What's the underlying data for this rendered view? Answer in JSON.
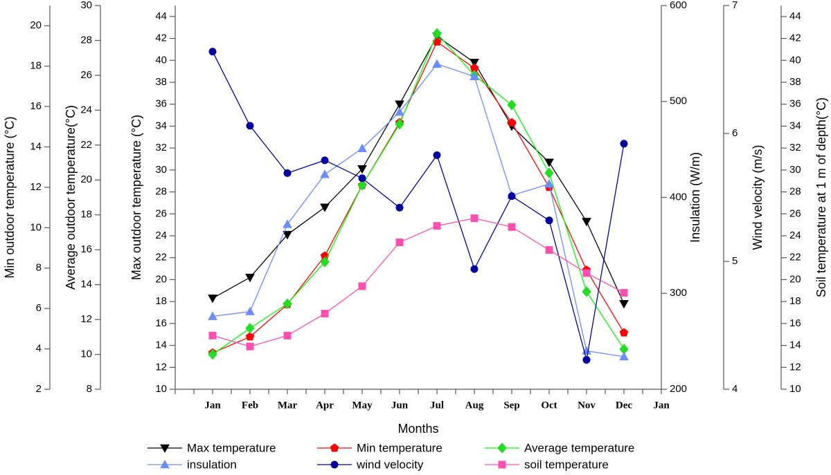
{
  "chart_data": {
    "type": "line",
    "xlabel": "Months",
    "categories": [
      "Jan",
      "Feb",
      "Mar",
      "Apr",
      "May",
      "Jun",
      "Jul",
      "Aug",
      "Sep",
      "Oct",
      "Nov",
      "Dec",
      "Jan"
    ],
    "ylabel": "Max outdoor temperature (°C)",
    "ylim": [
      10,
      45
    ],
    "yticks": [
      10,
      12,
      14,
      16,
      18,
      20,
      22,
      24,
      26,
      28,
      30,
      32,
      34,
      36,
      38,
      40,
      42,
      44
    ],
    "y2label": "Min outdoor temperature (°C)",
    "y2lim": [
      2,
      21
    ],
    "y2ticks": [
      2,
      4,
      6,
      8,
      10,
      12,
      14,
      16,
      18,
      20
    ],
    "y3label": "Average outdoor temperature(°C)",
    "y3lim": [
      8,
      30
    ],
    "y3ticks": [
      8,
      10,
      12,
      14,
      16,
      18,
      20,
      22,
      24,
      26,
      28,
      30
    ],
    "y4label": "Insulation (W/m)",
    "y4lim": [
      200,
      600
    ],
    "y4ticks": [
      200,
      300,
      400,
      500,
      600
    ],
    "y5label": "Wind velocity (m/s)",
    "y5lim": [
      4,
      7
    ],
    "y5ticks": [
      4,
      5,
      6,
      7
    ],
    "y6label": "Soil temperature at 1 m of depth(°C)",
    "y6lim": [
      10,
      45
    ],
    "y6ticks": [
      10,
      12,
      14,
      16,
      18,
      20,
      22,
      24,
      26,
      28,
      30,
      32,
      34,
      36,
      38,
      40,
      42,
      44
    ],
    "series": [
      {
        "name": "Max temperature",
        "color": "#000000",
        "marker": "triangle-down",
        "axis": "y",
        "values": [
          18.3,
          20.2,
          24.1,
          26.6,
          30.1,
          36.0,
          42.2,
          39.8,
          34.0,
          30.7,
          25.3,
          17.8,
          null
        ]
      },
      {
        "name": "Min temperature",
        "color": "#ff0000",
        "marker": "pentagon",
        "axis": "y2",
        "values": [
          3.8,
          4.6,
          6.2,
          8.6,
          12.1,
          15.2,
          19.2,
          17.9,
          15.2,
          12.0,
          7.9,
          4.8,
          null
        ]
      },
      {
        "name": "Average  temperature",
        "color": "#00ff00",
        "marker": "diamond",
        "axis": "y3",
        "values": [
          10.0,
          11.5,
          12.9,
          15.3,
          19.7,
          23.2,
          28.4,
          26.0,
          24.3,
          20.4,
          13.6,
          10.3,
          null
        ]
      },
      {
        "name": "insulation",
        "color": "#6b8cff",
        "marker": "triangle-up",
        "axis": "y4",
        "values": [
          276,
          281,
          372,
          424,
          451,
          489,
          539,
          526,
          402,
          414,
          240,
          234,
          null
        ]
      },
      {
        "name": "wind velocity",
        "color": "#0000a0",
        "marker": "circle",
        "axis": "y5",
        "values": [
          6.64,
          6.06,
          5.69,
          5.79,
          5.65,
          5.42,
          5.83,
          4.94,
          5.51,
          5.32,
          4.23,
          5.92,
          null
        ]
      },
      {
        "name": "soil temperature",
        "color": "#ff4fb0",
        "marker": "square",
        "axis": "y6",
        "values": [
          14.9,
          13.9,
          14.9,
          16.9,
          19.4,
          23.4,
          24.9,
          25.6,
          24.8,
          22.7,
          20.6,
          18.8,
          null
        ]
      }
    ]
  }
}
